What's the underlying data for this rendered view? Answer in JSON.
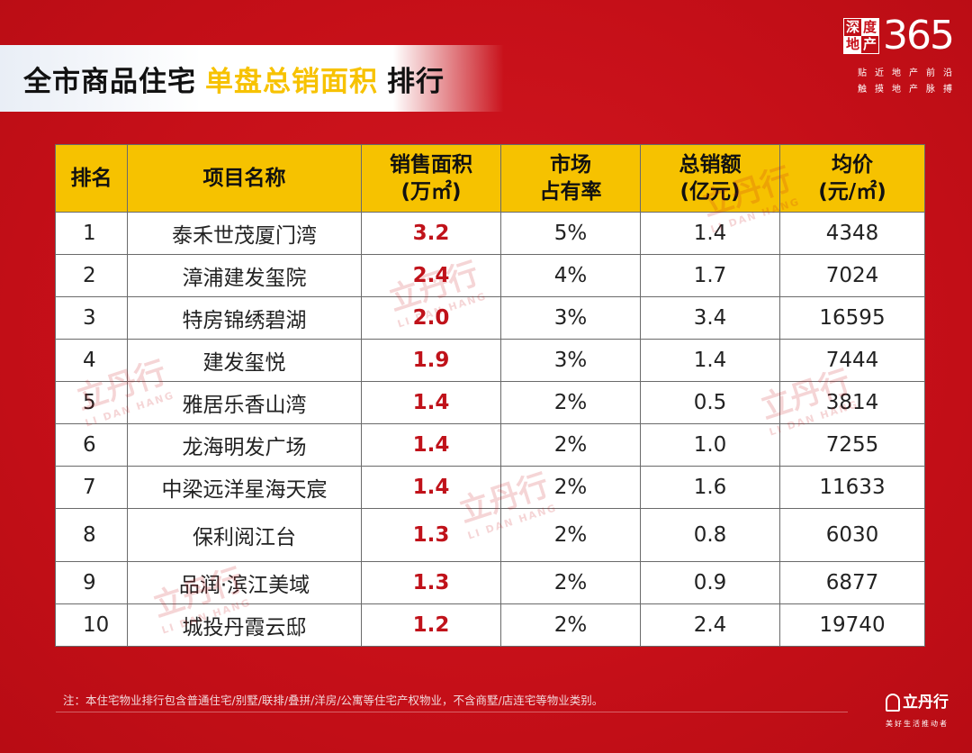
{
  "header": {
    "title_part1": "全市商品住宅",
    "title_part2": "单盘总销面积",
    "title_part3": "排行"
  },
  "logo": {
    "c1": "深",
    "c2": "度",
    "c3": "地",
    "c4": "产",
    "number": "365",
    "slogan1": "贴近地产前沿",
    "slogan2": "触摸地产脉搏"
  },
  "table": {
    "headers": [
      {
        "line1": "排名",
        "line2": ""
      },
      {
        "line1": "项目名称",
        "line2": ""
      },
      {
        "line1": "销售面积",
        "line2": "(万㎡)"
      },
      {
        "line1": "市场",
        "line2": "占有率"
      },
      {
        "line1": "总销额",
        "line2": "(亿元)"
      },
      {
        "line1": "均价",
        "line2": "(元/㎡)"
      }
    ],
    "rows": [
      {
        "rank": "1",
        "name": "泰禾世茂厦门湾",
        "area": "3.2",
        "share": "5%",
        "sales": "1.4",
        "price": "4348"
      },
      {
        "rank": "2",
        "name": "漳浦建发玺院",
        "area": "2.4",
        "share": "4%",
        "sales": "1.7",
        "price": "7024"
      },
      {
        "rank": "3",
        "name": "特房锦绣碧湖",
        "area": "2.0",
        "share": "3%",
        "sales": "3.4",
        "price": "16595"
      },
      {
        "rank": "4",
        "name": "建发玺悦",
        "area": "1.9",
        "share": "3%",
        "sales": "1.4",
        "price": "7444"
      },
      {
        "rank": "5",
        "name": "雅居乐香山湾",
        "area": "1.4",
        "share": "2%",
        "sales": "0.5",
        "price": "3814"
      },
      {
        "rank": "6",
        "name": "龙海明发广场",
        "area": "1.4",
        "share": "2%",
        "sales": "1.0",
        "price": "7255"
      },
      {
        "rank": "7",
        "name": "中梁远洋星海天宸",
        "area": "1.4",
        "share": "2%",
        "sales": "1.6",
        "price": "11633"
      },
      {
        "rank": "8",
        "name": "保利阅江台",
        "area": "1.3",
        "share": "2%",
        "sales": "0.8",
        "price": "6030"
      },
      {
        "rank": "9",
        "name": "品润·滨江美域",
        "area": "1.3",
        "share": "2%",
        "sales": "0.9",
        "price": "6877"
      },
      {
        "rank": "10",
        "name": "城投丹霞云邸",
        "area": "1.2",
        "share": "2%",
        "sales": "2.4",
        "price": "19740"
      }
    ]
  },
  "watermark": {
    "cn": "立丹行",
    "en": "LI DAN HANG"
  },
  "note": "注：本住宅物业排行包含普通住宅/别墅/联排/叠拼/洋房/公寓等住宅产权物业，不含商墅/店连宅等物业类别。",
  "brand": {
    "name": "立丹行",
    "slogan": "美好生活推动者"
  },
  "colors": {
    "background": "#c8101a",
    "header_fill": "#f6c200",
    "accent_text": "#c0121a"
  }
}
